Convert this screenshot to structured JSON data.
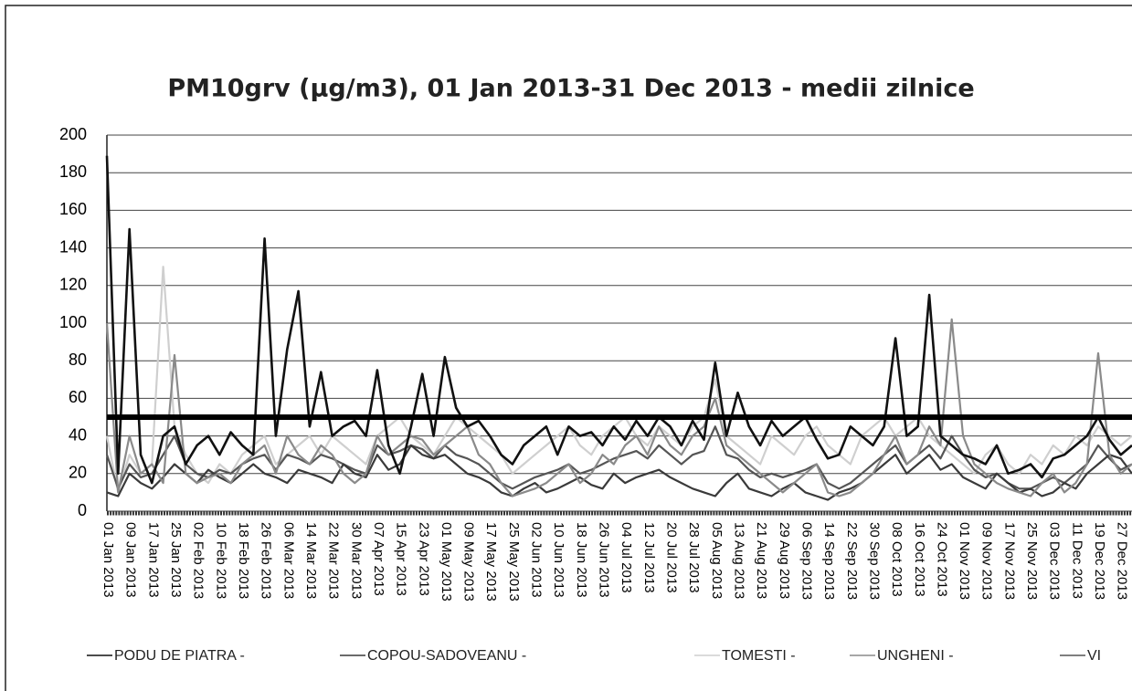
{
  "chart_data": {
    "type": "line",
    "title": "PM10grv (µg/m3), 01 Jan 2013-31 Dec 2013 -  medii zilnice",
    "categories": [
      "01 Jan 2013",
      null,
      "09 Jan 2013",
      null,
      "17 Jan 2013",
      null,
      "25 Jan 2013",
      null,
      "02 Feb 2013",
      null,
      "10 Feb 2013",
      null,
      "18 Feb 2013",
      null,
      "26 Feb 2013",
      null,
      "06 Mar 2013",
      null,
      "14 Mar 2013",
      null,
      "22 Mar 2013",
      null,
      "30 Mar 2013",
      null,
      "07 Apr 2013",
      null,
      "15 Apr 2013",
      null,
      "23 Apr 2013",
      null,
      "01 May 2013",
      null,
      "09 May 2013",
      null,
      "17 May 2013",
      null,
      "25 May 2013",
      null,
      "02 Jun 2013",
      null,
      "10 Jun 2013",
      null,
      "18 Jun 2013",
      null,
      "26 Jun 2013",
      null,
      "04 Jul 2013",
      null,
      "12 Jul 2013",
      null,
      "20 Jul 2013",
      null,
      "28 Jul 2013",
      null,
      "05 Aug 2013",
      null,
      "13 Aug 2013",
      null,
      "21 Aug 2013",
      null,
      "29 Aug 2013",
      null,
      "06 Sep 2013",
      null,
      "14 Sep 2013",
      null,
      "22 Sep 2013",
      null,
      "30 Sep 2013",
      null,
      "08 Oct 2013",
      null,
      "16 Oct 2013",
      null,
      "24 Oct 2013",
      null,
      "01 Nov 2013",
      null,
      "09 Nov 2013",
      null,
      "17 Nov 2013",
      null,
      "25 Nov 2013",
      null,
      "03 Dec 2013",
      null,
      "11 Dec 2013",
      null,
      "19 Dec 2013",
      null,
      "27 Dec 2013",
      null
    ],
    "series": [
      {
        "name": "PODU DE PIATRA -",
        "color": "#111111",
        "values": [
          189,
          20,
          150,
          30,
          15,
          40,
          45,
          25,
          35,
          40,
          30,
          42,
          35,
          30,
          145,
          40,
          86,
          117,
          45,
          74,
          40,
          45,
          48,
          40,
          75,
          35,
          20,
          45,
          73,
          40,
          82,
          55,
          45,
          48,
          40,
          30,
          25,
          35,
          40,
          45,
          30,
          45,
          40,
          42,
          35,
          45,
          38,
          48,
          40,
          50,
          45,
          35,
          48,
          38,
          79,
          40,
          63,
          45,
          35,
          48,
          40,
          45,
          50,
          38,
          28,
          30,
          45,
          40,
          35,
          45,
          92,
          40,
          45,
          115,
          40,
          35,
          30,
          28,
          25,
          35,
          20,
          22,
          25,
          18,
          28,
          30,
          35,
          40,
          50,
          38,
          30,
          35
        ]
      },
      {
        "name": "COPOU-SADOVEANU -",
        "color": "#3a3a3a",
        "values": [
          10,
          8,
          20,
          15,
          12,
          18,
          25,
          20,
          15,
          22,
          18,
          15,
          20,
          25,
          20,
          18,
          15,
          22,
          20,
          18,
          15,
          25,
          20,
          18,
          30,
          22,
          25,
          35,
          30,
          28,
          30,
          25,
          20,
          18,
          15,
          10,
          8,
          12,
          15,
          10,
          12,
          15,
          18,
          14,
          12,
          20,
          15,
          18,
          20,
          22,
          18,
          15,
          12,
          10,
          8,
          15,
          20,
          12,
          10,
          8,
          12,
          15,
          10,
          8,
          6,
          10,
          12,
          15,
          20,
          25,
          30,
          20,
          25,
          30,
          22,
          25,
          18,
          15,
          12,
          20,
          15,
          10,
          12,
          8,
          10,
          15,
          12,
          20,
          25,
          30,
          28,
          20
        ]
      },
      {
        "name": "TOMESTI -",
        "color": "#cfcfcf",
        "values": [
          40,
          10,
          30,
          20,
          25,
          130,
          45,
          30,
          20,
          15,
          25,
          20,
          30,
          35,
          40,
          25,
          30,
          35,
          40,
          30,
          40,
          35,
          30,
          25,
          40,
          45,
          50,
          40,
          35,
          30,
          40,
          50,
          45,
          40,
          35,
          30,
          20,
          25,
          30,
          35,
          40,
          45,
          35,
          30,
          40,
          45,
          50,
          40,
          35,
          45,
          40,
          35,
          45,
          50,
          70,
          40,
          35,
          30,
          25,
          40,
          35,
          30,
          40,
          45,
          35,
          30,
          25,
          40,
          45,
          50,
          40,
          45,
          50,
          40,
          35,
          30,
          25,
          20,
          30,
          35,
          25,
          20,
          30,
          25,
          35,
          30,
          40,
          35,
          45,
          40,
          35,
          40
        ]
      },
      {
        "name": "UNGHENI -",
        "color": "#8a8a8a",
        "values": [
          100,
          10,
          40,
          20,
          25,
          15,
          83,
          20,
          15,
          18,
          20,
          15,
          25,
          30,
          35,
          20,
          40,
          30,
          25,
          35,
          30,
          20,
          15,
          20,
          40,
          30,
          35,
          40,
          38,
          30,
          35,
          40,
          45,
          30,
          25,
          15,
          8,
          10,
          12,
          15,
          20,
          25,
          15,
          20,
          30,
          25,
          35,
          40,
          30,
          45,
          35,
          30,
          40,
          45,
          60,
          35,
          30,
          25,
          20,
          15,
          10,
          15,
          20,
          25,
          10,
          8,
          10,
          15,
          20,
          30,
          40,
          25,
          30,
          45,
          35,
          102,
          40,
          25,
          20,
          15,
          12,
          10,
          8,
          15,
          20,
          10,
          15,
          25,
          84,
          30,
          20,
          25
        ]
      },
      {
        "name": "VI",
        "color": "#555555",
        "values": [
          30,
          12,
          25,
          18,
          20,
          30,
          40,
          25,
          20,
          18,
          22,
          20,
          25,
          28,
          30,
          22,
          30,
          28,
          25,
          30,
          28,
          25,
          22,
          20,
          35,
          30,
          32,
          35,
          33,
          28,
          35,
          30,
          28,
          25,
          20,
          15,
          12,
          15,
          18,
          20,
          22,
          25,
          20,
          22,
          25,
          28,
          30,
          32,
          28,
          35,
          30,
          25,
          30,
          32,
          45,
          30,
          28,
          22,
          18,
          20,
          18,
          20,
          22,
          25,
          15,
          12,
          15,
          20,
          25,
          30,
          35,
          25,
          30,
          35,
          28,
          40,
          30,
          22,
          18,
          20,
          15,
          12,
          12,
          15,
          18,
          15,
          20,
          25,
          35,
          28,
          22,
          25
        ]
      }
    ],
    "threshold": 50,
    "ylim": [
      0,
      200
    ],
    "yticks": [
      0,
      20,
      40,
      60,
      80,
      100,
      120,
      140,
      160,
      180,
      200
    ],
    "grid": true
  }
}
